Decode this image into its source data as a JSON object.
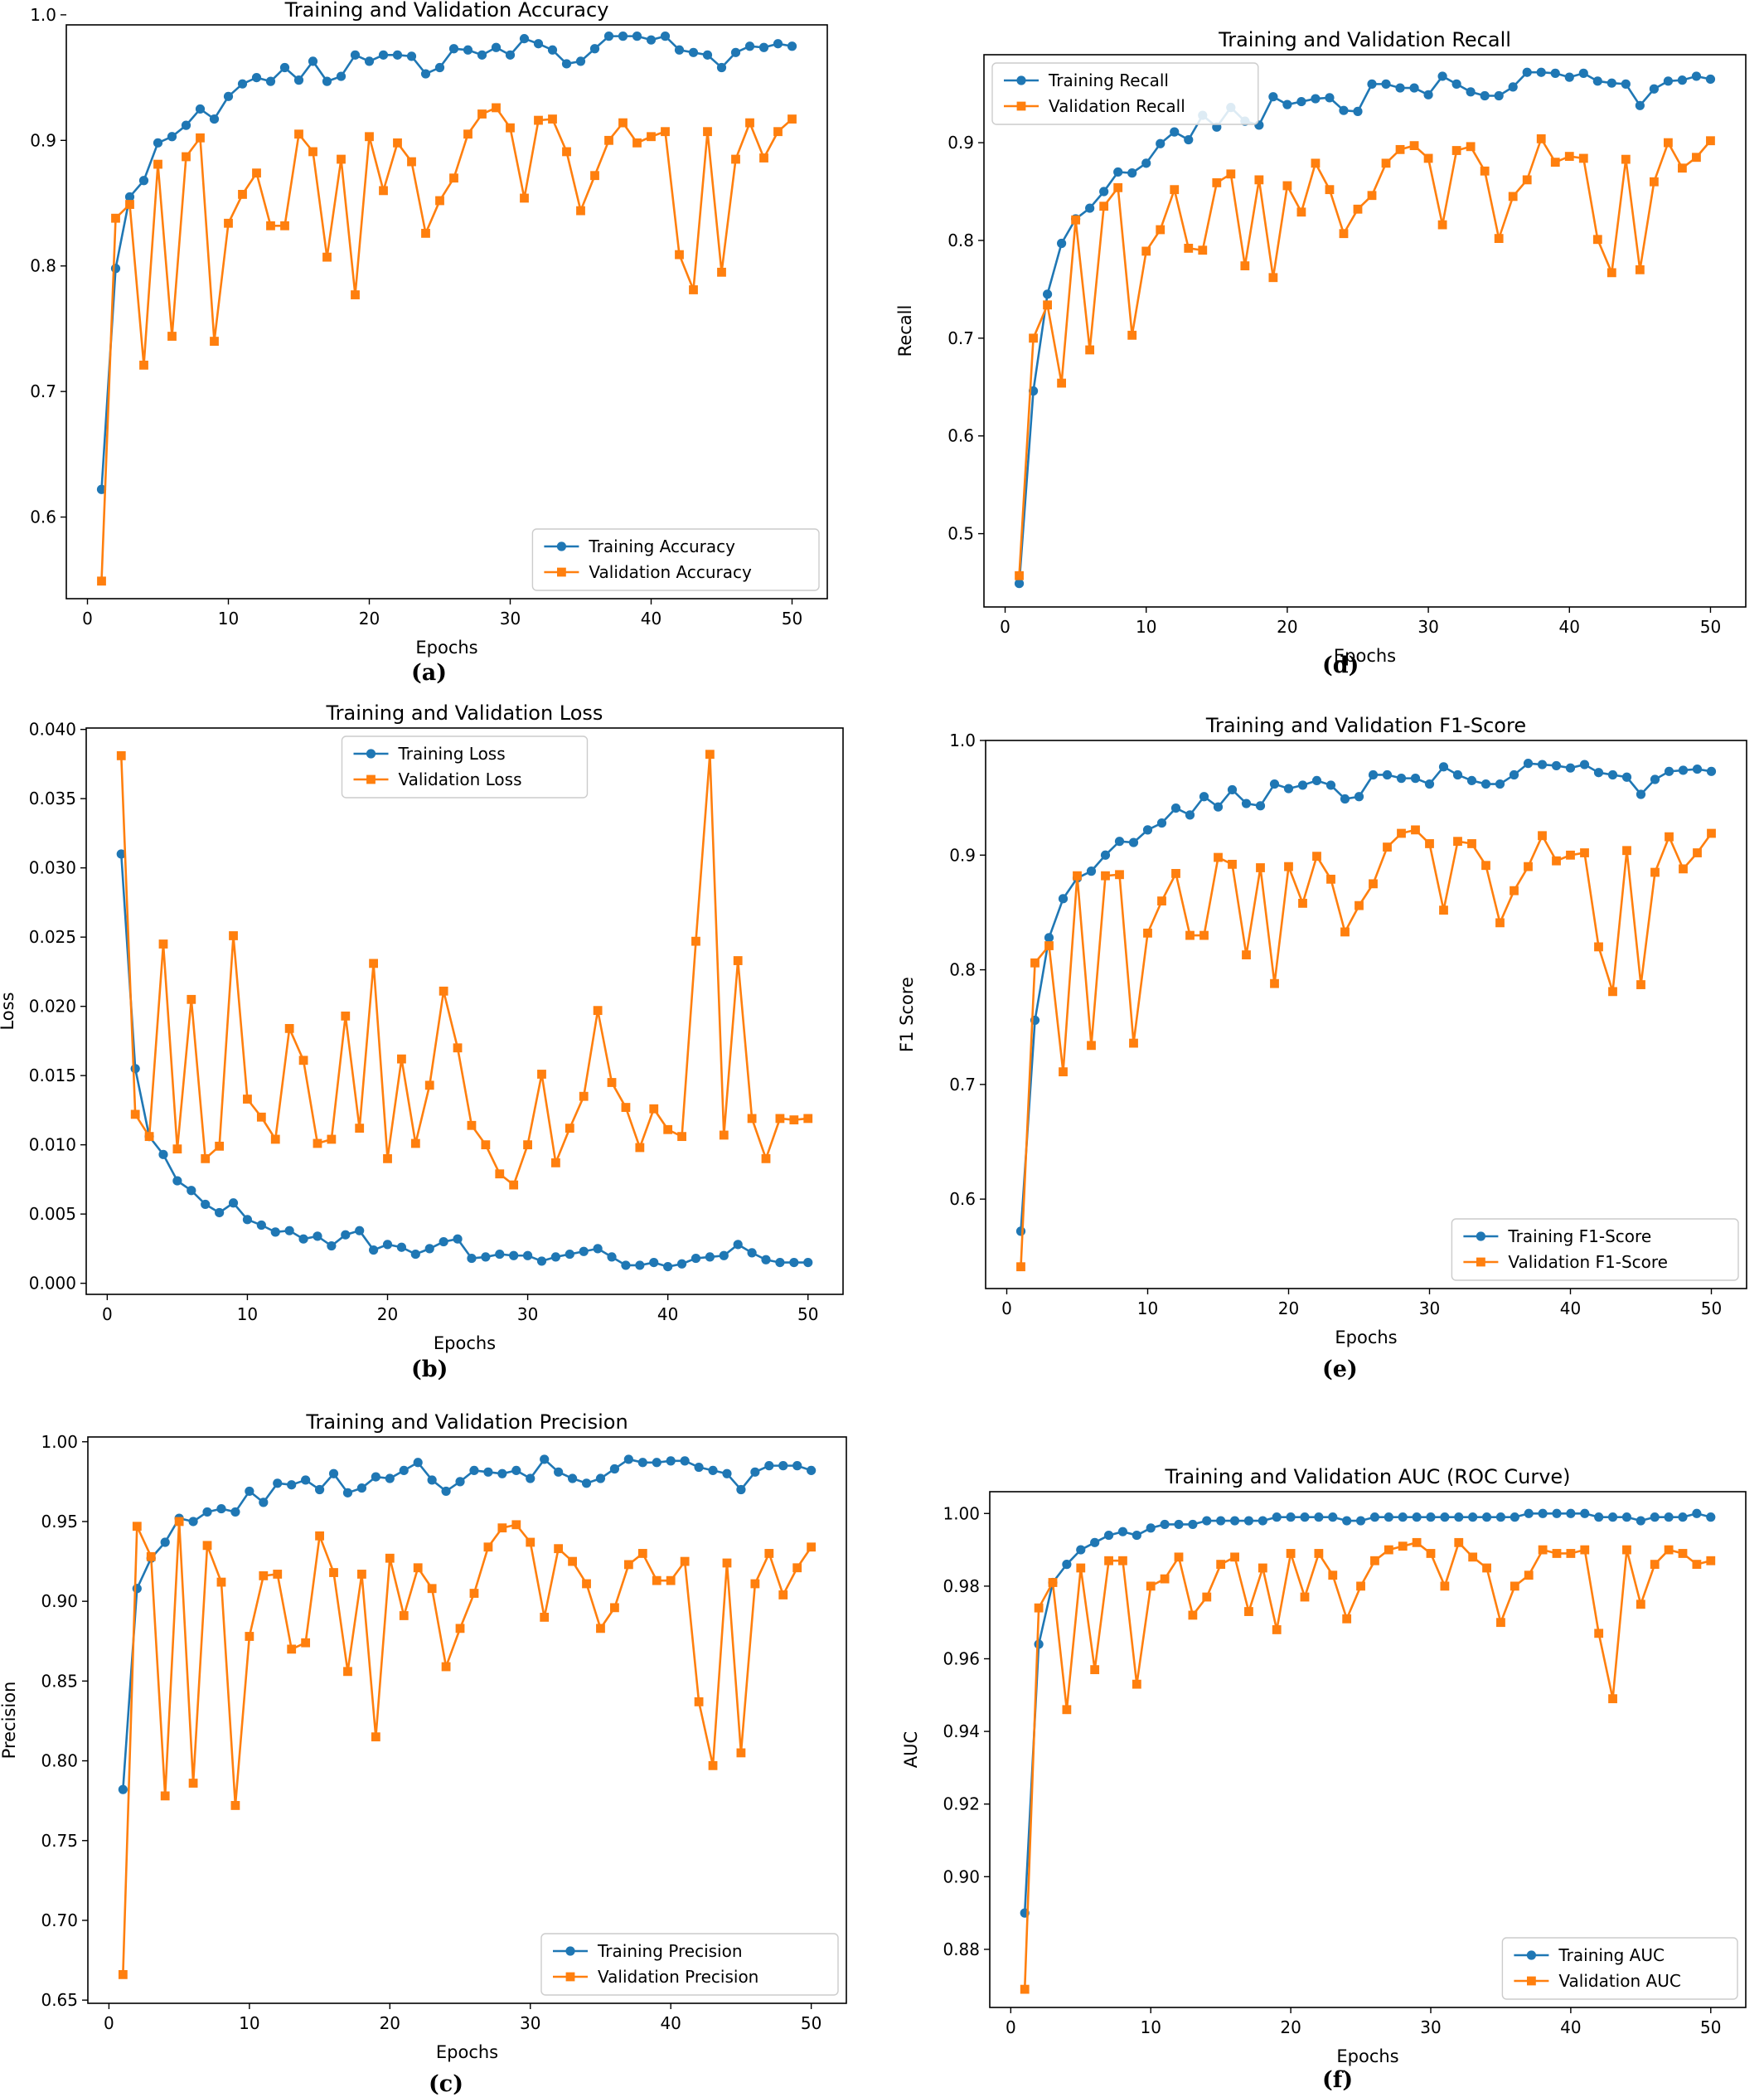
{
  "colors": {
    "training": "#1f77b4",
    "validation": "#ff7f0e"
  },
  "charts": [
    {
      "id": "a",
      "caption": "(a)",
      "type": "line",
      "title": "Training and Validation Accuracy",
      "xlabel": "Epochs",
      "ylabel": "Accuracy",
      "xlim": [
        -1.5,
        52.5
      ],
      "ylim": [
        0.535,
        0.992
      ],
      "xticks": [
        0,
        10,
        20,
        30,
        40,
        50
      ],
      "yticks": [
        0.6,
        0.7,
        0.8,
        0.9,
        1.0
      ],
      "ytick_labels": [
        "0.6",
        "0.7",
        "0.8",
        "0.9",
        "1.0"
      ],
      "legend_loc": "lower-right",
      "grid": false,
      "series": [
        {
          "name": "Training Accuracy",
          "role": "training",
          "marker": "circle",
          "values": [
            0.622,
            0.798,
            0.855,
            0.868,
            0.898,
            0.903,
            0.912,
            0.925,
            0.917,
            0.935,
            0.945,
            0.95,
            0.947,
            0.958,
            0.948,
            0.963,
            0.947,
            0.951,
            0.968,
            0.963,
            0.968,
            0.968,
            0.967,
            0.953,
            0.958,
            0.973,
            0.972,
            0.968,
            0.974,
            0.968,
            0.981,
            0.977,
            0.972,
            0.961,
            0.963,
            0.973,
            0.983,
            0.983,
            0.983,
            0.98,
            0.983,
            0.972,
            0.97,
            0.968,
            0.958,
            0.97,
            0.975,
            0.974,
            0.977,
            0.975
          ]
        },
        {
          "name": "Validation Accuracy",
          "role": "validation",
          "marker": "square",
          "values": [
            0.549,
            0.838,
            0.849,
            0.721,
            0.881,
            0.744,
            0.887,
            0.902,
            0.74,
            0.834,
            0.857,
            0.874,
            0.832,
            0.832,
            0.905,
            0.891,
            0.807,
            0.885,
            0.777,
            0.903,
            0.86,
            0.898,
            0.883,
            0.826,
            0.852,
            0.87,
            0.905,
            0.921,
            0.926,
            0.91,
            0.854,
            0.916,
            0.917,
            0.891,
            0.844,
            0.872,
            0.9,
            0.914,
            0.898,
            0.903,
            0.907,
            0.809,
            0.781,
            0.907,
            0.795,
            0.885,
            0.914,
            0.886,
            0.907,
            0.917
          ]
        }
      ]
    },
    {
      "id": "b",
      "caption": "(b)",
      "type": "line",
      "title": "Training and Validation Loss",
      "xlabel": "Epochs",
      "ylabel": "Loss",
      "xlim": [
        -1.5,
        52.5
      ],
      "ylim": [
        -0.0008,
        0.0401
      ],
      "xticks": [
        0,
        10,
        20,
        30,
        40,
        50
      ],
      "yticks": [
        0.0,
        0.005,
        0.01,
        0.015,
        0.02,
        0.025,
        0.03,
        0.035,
        0.04
      ],
      "ytick_labels": [
        "0.000",
        "0.005",
        "0.010",
        "0.015",
        "0.020",
        "0.025",
        "0.030",
        "0.035",
        "0.040"
      ],
      "legend_loc": "top-center",
      "grid": false,
      "series": [
        {
          "name": "Training Loss",
          "role": "training",
          "marker": "circle",
          "values": [
            0.031,
            0.0155,
            0.0106,
            0.0093,
            0.0074,
            0.0067,
            0.0057,
            0.0051,
            0.0058,
            0.0046,
            0.0042,
            0.0037,
            0.0038,
            0.0032,
            0.0034,
            0.0027,
            0.0035,
            0.0038,
            0.0024,
            0.0028,
            0.0026,
            0.0021,
            0.0025,
            0.003,
            0.0032,
            0.0018,
            0.0019,
            0.0021,
            0.002,
            0.002,
            0.0016,
            0.0019,
            0.0021,
            0.0023,
            0.0025,
            0.0019,
            0.0013,
            0.0013,
            0.0015,
            0.0012,
            0.0014,
            0.0018,
            0.0019,
            0.002,
            0.0028,
            0.0022,
            0.0017,
            0.0015,
            0.0015,
            0.0015
          ]
        },
        {
          "name": "Validation Loss",
          "role": "validation",
          "marker": "square",
          "values": [
            0.0381,
            0.0122,
            0.0106,
            0.0245,
            0.0097,
            0.0205,
            0.009,
            0.0099,
            0.0251,
            0.0133,
            0.012,
            0.0104,
            0.0184,
            0.0161,
            0.0101,
            0.0104,
            0.0193,
            0.0112,
            0.0231,
            0.009,
            0.0162,
            0.0101,
            0.0143,
            0.0211,
            0.017,
            0.0114,
            0.01,
            0.0079,
            0.0071,
            0.01,
            0.0151,
            0.0087,
            0.0112,
            0.0135,
            0.0197,
            0.0145,
            0.0127,
            0.0098,
            0.0126,
            0.0111,
            0.0106,
            0.0247,
            0.0382,
            0.0107,
            0.0233,
            0.0119,
            0.009,
            0.0119,
            0.0118,
            0.0119
          ]
        }
      ]
    },
    {
      "id": "c",
      "caption": "(c)",
      "type": "line",
      "title": "Training and Validation Precision",
      "xlabel": "Epochs",
      "ylabel": "Precision",
      "xlim": [
        -1.5,
        52.5
      ],
      "ylim": [
        0.648,
        1.003
      ],
      "xticks": [
        0,
        10,
        20,
        30,
        40,
        50
      ],
      "yticks": [
        0.65,
        0.7,
        0.75,
        0.8,
        0.85,
        0.9,
        0.95,
        1.0
      ],
      "ytick_labels": [
        "0.65",
        "0.70",
        "0.75",
        "0.80",
        "0.85",
        "0.90",
        "0.95",
        "1.00"
      ],
      "legend_loc": "lower-right",
      "grid": false,
      "series": [
        {
          "name": "Training Precision",
          "role": "training",
          "marker": "circle",
          "values": [
            0.782,
            0.908,
            0.927,
            0.937,
            0.952,
            0.95,
            0.956,
            0.958,
            0.956,
            0.969,
            0.962,
            0.974,
            0.973,
            0.976,
            0.97,
            0.98,
            0.968,
            0.971,
            0.978,
            0.977,
            0.982,
            0.987,
            0.976,
            0.969,
            0.975,
            0.982,
            0.981,
            0.98,
            0.982,
            0.977,
            0.989,
            0.981,
            0.977,
            0.974,
            0.977,
            0.983,
            0.989,
            0.987,
            0.987,
            0.988,
            0.988,
            0.984,
            0.982,
            0.98,
            0.97,
            0.981,
            0.985,
            0.985,
            0.985,
            0.982
          ]
        },
        {
          "name": "Validation Precision",
          "role": "validation",
          "marker": "square",
          "values": [
            0.666,
            0.947,
            0.928,
            0.778,
            0.95,
            0.786,
            0.935,
            0.912,
            0.772,
            0.878,
            0.916,
            0.917,
            0.87,
            0.874,
            0.941,
            0.918,
            0.856,
            0.917,
            0.815,
            0.927,
            0.891,
            0.921,
            0.908,
            0.859,
            0.883,
            0.905,
            0.934,
            0.946,
            0.948,
            0.937,
            0.89,
            0.933,
            0.925,
            0.911,
            0.883,
            0.896,
            0.923,
            0.93,
            0.913,
            0.913,
            0.925,
            0.837,
            0.797,
            0.924,
            0.805,
            0.911,
            0.93,
            0.904,
            0.921,
            0.934
          ]
        }
      ]
    },
    {
      "id": "d",
      "caption": "(d)",
      "type": "line",
      "title": "Training and Validation Recall",
      "xlabel": "Epochs",
      "ylabel": "Recall",
      "xlim": [
        -1.5,
        52.5
      ],
      "ylim": [
        0.425,
        0.99
      ],
      "xticks": [
        0,
        10,
        20,
        30,
        40,
        50
      ],
      "yticks": [
        0.5,
        0.6,
        0.7,
        0.8,
        0.9
      ],
      "ytick_labels": [
        "0.5",
        "0.6",
        "0.7",
        "0.8",
        "0.9"
      ],
      "legend_loc": "top-left",
      "grid": false,
      "series": [
        {
          "name": "Training Recall",
          "role": "training",
          "marker": "circle",
          "values": [
            0.449,
            0.646,
            0.745,
            0.797,
            0.822,
            0.833,
            0.85,
            0.87,
            0.869,
            0.879,
            0.899,
            0.911,
            0.903,
            0.928,
            0.916,
            0.936,
            0.922,
            0.918,
            0.947,
            0.939,
            0.942,
            0.945,
            0.946,
            0.933,
            0.932,
            0.96,
            0.96,
            0.956,
            0.956,
            0.949,
            0.968,
            0.96,
            0.952,
            0.948,
            0.948,
            0.957,
            0.972,
            0.972,
            0.971,
            0.967,
            0.971,
            0.963,
            0.961,
            0.96,
            0.938,
            0.955,
            0.963,
            0.964,
            0.968,
            0.965
          ]
        },
        {
          "name": "Validation Recall",
          "role": "validation",
          "marker": "square",
          "values": [
            0.457,
            0.7,
            0.734,
            0.654,
            0.821,
            0.688,
            0.835,
            0.854,
            0.703,
            0.789,
            0.811,
            0.852,
            0.792,
            0.79,
            0.859,
            0.868,
            0.774,
            0.862,
            0.762,
            0.856,
            0.829,
            0.879,
            0.852,
            0.807,
            0.832,
            0.846,
            0.879,
            0.893,
            0.897,
            0.884,
            0.816,
            0.892,
            0.896,
            0.871,
            0.802,
            0.845,
            0.862,
            0.904,
            0.88,
            0.886,
            0.884,
            0.801,
            0.767,
            0.883,
            0.77,
            0.86,
            0.9,
            0.874,
            0.885,
            0.902
          ]
        }
      ]
    },
    {
      "id": "e",
      "caption": "(e)",
      "type": "line",
      "title": "Training and Validation F1-Score",
      "xlabel": "Epochs",
      "ylabel": "F1 Score",
      "xlim": [
        -1.5,
        52.5
      ],
      "ylim": [
        0.522,
        1.0
      ],
      "xticks": [
        0,
        10,
        20,
        30,
        40,
        50
      ],
      "yticks": [
        0.6,
        0.7,
        0.8,
        0.9,
        1.0
      ],
      "ytick_labels": [
        "0.6",
        "0.7",
        "0.8",
        "0.9",
        "1.0"
      ],
      "legend_loc": "lower-right",
      "grid": false,
      "series": [
        {
          "name": "Training F1-Score",
          "role": "training",
          "marker": "circle",
          "values": [
            0.572,
            0.756,
            0.828,
            0.862,
            0.88,
            0.886,
            0.9,
            0.912,
            0.911,
            0.922,
            0.928,
            0.941,
            0.935,
            0.951,
            0.942,
            0.957,
            0.945,
            0.943,
            0.962,
            0.958,
            0.961,
            0.965,
            0.961,
            0.949,
            0.951,
            0.97,
            0.97,
            0.967,
            0.967,
            0.962,
            0.977,
            0.97,
            0.965,
            0.962,
            0.962,
            0.97,
            0.98,
            0.979,
            0.978,
            0.976,
            0.979,
            0.972,
            0.97,
            0.968,
            0.953,
            0.966,
            0.973,
            0.974,
            0.975,
            0.973
          ]
        },
        {
          "name": "Validation F1-Score",
          "role": "validation",
          "marker": "square",
          "values": [
            0.541,
            0.806,
            0.821,
            0.711,
            0.882,
            0.734,
            0.882,
            0.883,
            0.736,
            0.832,
            0.86,
            0.884,
            0.83,
            0.83,
            0.898,
            0.892,
            0.813,
            0.889,
            0.788,
            0.89,
            0.858,
            0.899,
            0.879,
            0.833,
            0.856,
            0.875,
            0.907,
            0.919,
            0.922,
            0.91,
            0.852,
            0.912,
            0.91,
            0.891,
            0.841,
            0.869,
            0.89,
            0.917,
            0.895,
            0.9,
            0.902,
            0.82,
            0.781,
            0.904,
            0.787,
            0.885,
            0.916,
            0.888,
            0.902,
            0.919
          ]
        }
      ]
    },
    {
      "id": "f",
      "caption": "(f)",
      "type": "line",
      "title": "Training and Validation AUC (ROC Curve)",
      "xlabel": "Epochs",
      "ylabel": "AUC",
      "xlim": [
        -1.5,
        52.5
      ],
      "ylim": [
        0.864,
        1.006
      ],
      "xticks": [
        0,
        10,
        20,
        30,
        40,
        50
      ],
      "yticks": [
        0.88,
        0.9,
        0.92,
        0.94,
        0.96,
        0.98,
        1.0
      ],
      "ytick_labels": [
        "0.88",
        "0.90",
        "0.92",
        "0.94",
        "0.96",
        "0.98",
        "1.00"
      ],
      "legend_loc": "lower-right",
      "grid": false,
      "series": [
        {
          "name": "Training AUC",
          "role": "training",
          "marker": "circle",
          "values": [
            0.89,
            0.964,
            0.981,
            0.986,
            0.99,
            0.992,
            0.994,
            0.995,
            0.994,
            0.996,
            0.997,
            0.997,
            0.997,
            0.998,
            0.998,
            0.998,
            0.998,
            0.998,
            0.999,
            0.999,
            0.999,
            0.999,
            0.999,
            0.998,
            0.998,
            0.999,
            0.999,
            0.999,
            0.999,
            0.999,
            0.999,
            0.999,
            0.999,
            0.999,
            0.999,
            0.999,
            1.0,
            1.0,
            1.0,
            1.0,
            1.0,
            0.999,
            0.999,
            0.999,
            0.998,
            0.999,
            0.999,
            0.999,
            1.0,
            0.999
          ]
        },
        {
          "name": "Validation AUC",
          "role": "validation",
          "marker": "square",
          "values": [
            0.869,
            0.974,
            0.981,
            0.946,
            0.985,
            0.957,
            0.987,
            0.987,
            0.953,
            0.98,
            0.982,
            0.988,
            0.972,
            0.977,
            0.986,
            0.988,
            0.973,
            0.985,
            0.968,
            0.989,
            0.977,
            0.989,
            0.983,
            0.971,
            0.98,
            0.987,
            0.99,
            0.991,
            0.992,
            0.989,
            0.98,
            0.992,
            0.988,
            0.985,
            0.97,
            0.98,
            0.983,
            0.99,
            0.989,
            0.989,
            0.99,
            0.967,
            0.949,
            0.99,
            0.975,
            0.986,
            0.99,
            0.989,
            0.986,
            0.987
          ]
        }
      ]
    }
  ]
}
